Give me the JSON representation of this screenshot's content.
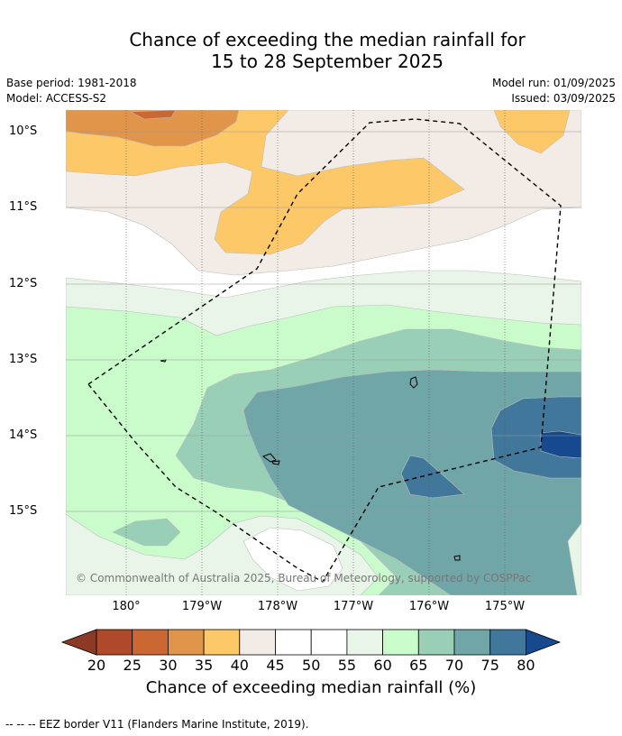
{
  "header": {
    "title_line1": "Chance of exceeding the median rainfall for",
    "title_line2": "15 to 28 September 2025",
    "base_period": "Base period: 1981-2018",
    "model": "Model: ACCESS-S2",
    "model_run": "Model run: 01/09/2025",
    "issued": "Issued: 03/09/2025"
  },
  "map": {
    "lat_labels": [
      "10°S",
      "11°S",
      "12°S",
      "13°S",
      "14°S",
      "15°S"
    ],
    "lon_labels": [
      "180°",
      "179°W",
      "178°W",
      "177°W",
      "176°W",
      "175°W"
    ],
    "copyright": "© Commonwealth of Australia 2025, Bureau of Meteorology, supported by COSPPac"
  },
  "colorbar": {
    "ticks": [
      "20",
      "25",
      "30",
      "35",
      "40",
      "45",
      "50",
      "55",
      "60",
      "65",
      "70",
      "75",
      "80"
    ],
    "colors": [
      "#b0482a",
      "#cb6733",
      "#e0954b",
      "#fdc867",
      "#f2ebe6",
      "#ffffff",
      "#ffffff",
      "#e9f5e9",
      "#c9fbcb",
      "#9acfb7",
      "#71a6a9",
      "#41779b"
    ],
    "under_color": "#8c3a26",
    "over_color": "#16498d",
    "label": "Chance of exceeding median rainfall (%)"
  },
  "footnote": "--  --  -- EEZ border V11 (Flanders Marine Institute, 2019)."
}
